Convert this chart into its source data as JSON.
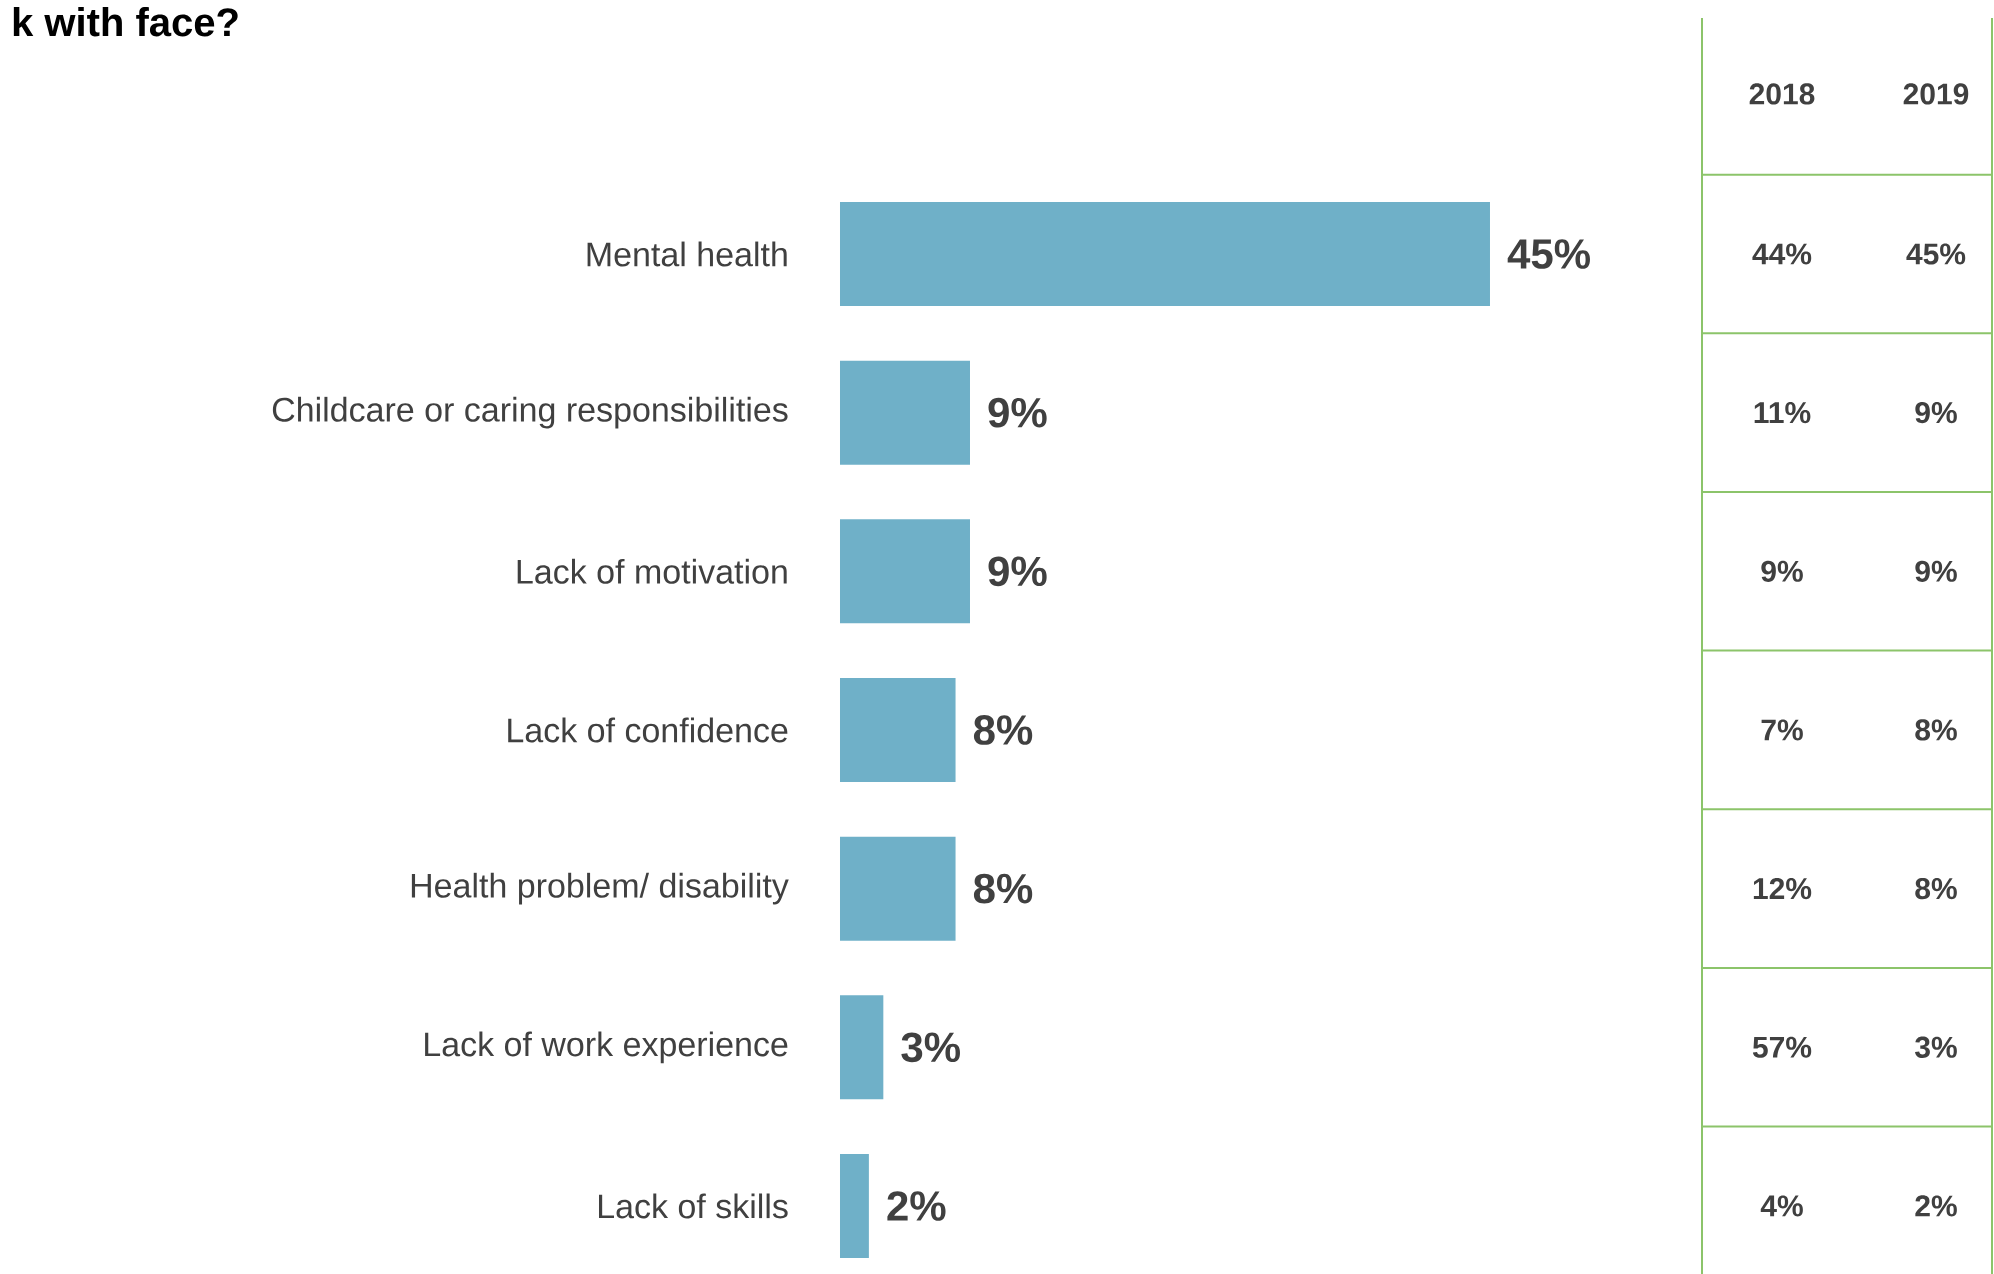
{
  "chart_data": [
    {
      "type": "bar",
      "orientation": "horizontal",
      "title": "k with face?",
      "categories": [
        "Mental health",
        "Childcare or caring responsibilities",
        "Lack of motivation",
        "Lack of confidence",
        "Health problem/ disability",
        "Lack of work experience",
        "Lack of skills"
      ],
      "values": [
        45,
        9,
        9,
        8,
        8,
        3,
        2
      ],
      "value_labels": [
        "45%",
        "9%",
        "9%",
        "8%",
        "8%",
        "3%",
        "2%"
      ],
      "color": "#6fb0c8"
    },
    {
      "type": "other",
      "annotations": [
        "2018",
        "2019",
        "44%",
        "45%",
        "11%",
        "9%",
        "9%",
        "9%",
        "7%",
        "8%",
        "12%",
        "8%",
        "57%",
        "3%",
        "4%",
        "2%"
      ]
    }
  ]
}
